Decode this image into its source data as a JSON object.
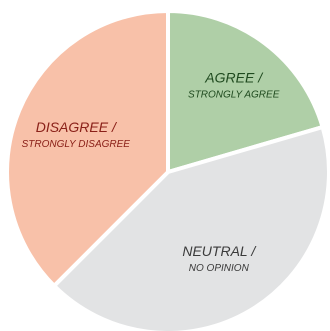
{
  "chart_data": {
    "type": "pie",
    "slices": [
      {
        "key": "agree",
        "label_main": "AGREE /",
        "label_sub": "STRONGLY AGREE",
        "value": 20.5,
        "color": "#afcfa7",
        "text_color": "#1f4a1f"
      },
      {
        "key": "neutral",
        "label_main": "NEUTRAL /",
        "label_sub": "NO OPINION",
        "value": 42,
        "color": "#e2e3e4",
        "text_color": "#3a3a3a"
      },
      {
        "key": "disagree",
        "label_main": "DISAGREE /",
        "label_sub": "STRONGLY DISAGREE",
        "value": 37.5,
        "color": "#f8c1a9",
        "text_color": "#8a2018"
      }
    ]
  }
}
